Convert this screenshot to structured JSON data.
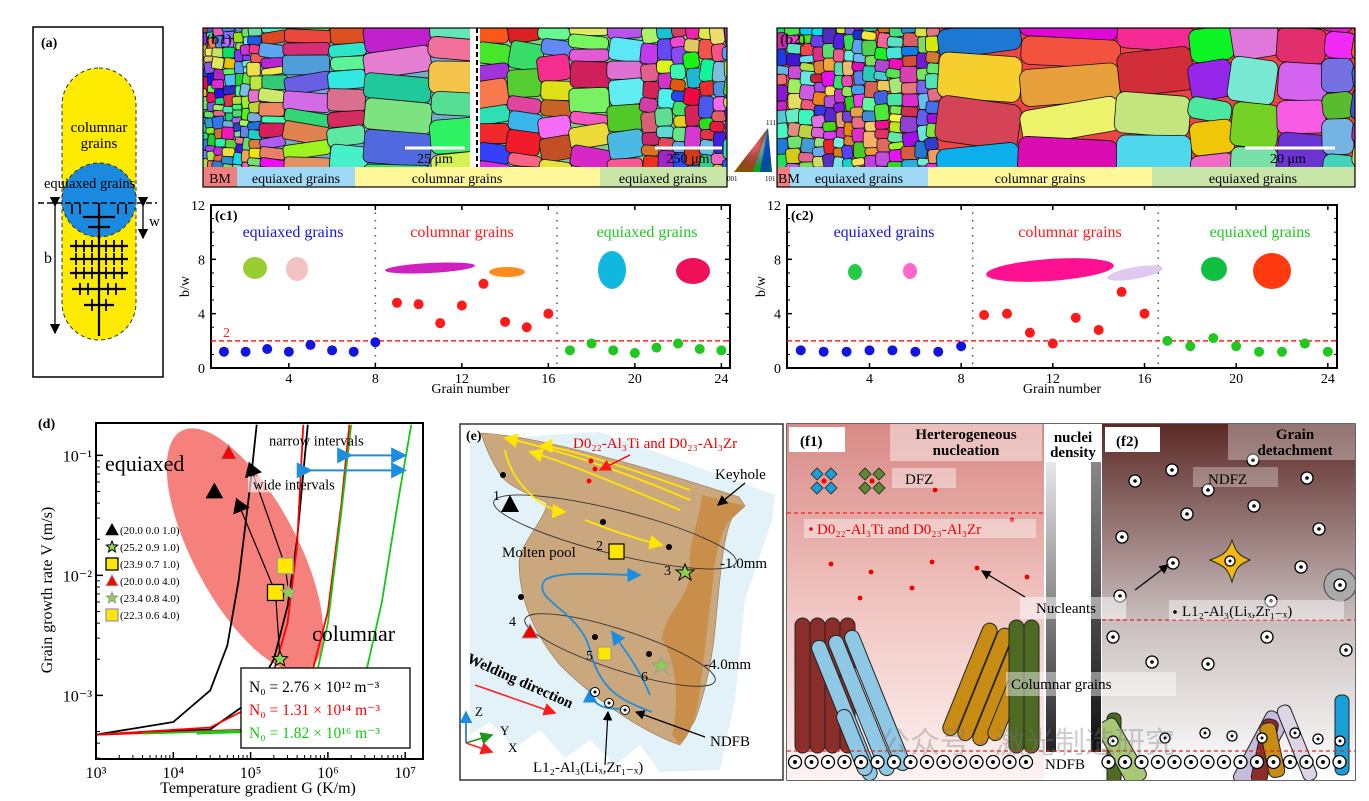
{
  "panel_a": {
    "label": "(a)",
    "columnar": "columnar",
    "grains": "grains",
    "equiaxed": "equiaxed grains",
    "b": "b",
    "w": "w"
  },
  "panel_b1": {
    "label": "(b1)",
    "scale_left": "25 μm",
    "scale_right": "250 μm",
    "strip": [
      "BM",
      "equiaxed grains",
      "columnar grains",
      "equiaxed grains"
    ]
  },
  "ipf": {
    "t111": "111",
    "t001": "001",
    "t101": "101"
  },
  "panel_b2": {
    "label": "(b2)",
    "scale": "20 μm",
    "strip": [
      "BM",
      "equiaxed grains",
      "columnar grains",
      "equiaxed grains"
    ]
  },
  "chart_data": [
    {
      "type": "scatter",
      "title": "(c1)",
      "xlabel": "Grain number",
      "ylabel": "b/w",
      "xlim": [
        0.4,
        24.4
      ],
      "ylim": [
        0,
        12
      ],
      "xticks": [
        "4",
        "8",
        "12",
        "16",
        "20",
        "24"
      ],
      "yticks": [
        "0",
        "4",
        "8",
        "12"
      ],
      "threshold": 2,
      "threshold_label": "2",
      "dividers": [
        8.0,
        16.4
      ],
      "groups": [
        {
          "name": "equiaxed grains",
          "color": "#1414e0",
          "x": [
            1,
            2,
            3,
            4,
            5,
            6,
            7,
            8
          ],
          "y": [
            1.2,
            1.2,
            1.4,
            1.2,
            1.7,
            1.3,
            1.2,
            1.9
          ]
        },
        {
          "name": "columnar grains",
          "color": "#ff1a1a",
          "x": [
            9,
            10,
            11,
            12,
            13,
            14,
            15,
            16
          ],
          "y": [
            4.8,
            4.7,
            3.3,
            4.6,
            6.2,
            3.4,
            3.0,
            4.0
          ]
        },
        {
          "name": "equiaxed grains",
          "color": "#1ec81e",
          "x": [
            17,
            18,
            19,
            20,
            21,
            22,
            23,
            24
          ],
          "y": [
            1.3,
            1.8,
            1.3,
            1.1,
            1.5,
            1.8,
            1.4,
            1.3
          ]
        }
      ]
    },
    {
      "type": "scatter",
      "title": "(c2)",
      "xlabel": "Grain number",
      "ylabel": "b/w",
      "xlim": [
        0.4,
        24.4
      ],
      "ylim": [
        0,
        12
      ],
      "xticks": [
        "4",
        "8",
        "12",
        "16",
        "20",
        "24"
      ],
      "yticks": [
        "0",
        "4",
        "8",
        "12"
      ],
      "threshold": 2,
      "dividers": [
        8.5,
        16.6
      ],
      "groups": [
        {
          "name": "equiaxed grains",
          "color": "#1414e0",
          "x": [
            1,
            2,
            3,
            4,
            5,
            6,
            7,
            8
          ],
          "y": [
            1.3,
            1.2,
            1.2,
            1.3,
            1.3,
            1.2,
            1.2,
            1.6
          ]
        },
        {
          "name": "columnar grains",
          "color": "#ff1a1a",
          "x": [
            9,
            10,
            11,
            12,
            13,
            14,
            15,
            16
          ],
          "y": [
            3.9,
            4.0,
            2.6,
            1.8,
            3.7,
            2.8,
            5.6,
            4.0
          ]
        },
        {
          "name": "equiaxed grains",
          "color": "#1ec81e",
          "x": [
            17,
            18,
            19,
            20,
            21,
            22,
            23,
            24
          ],
          "y": [
            2.0,
            1.6,
            2.2,
            1.6,
            1.2,
            1.2,
            1.8,
            1.2
          ]
        }
      ]
    },
    {
      "type": "line",
      "title": "(d)",
      "xlabel": "Temperature gradient G (K/m)",
      "ylabel": "Grain growth rate V (m/s)",
      "xscale": "log",
      "yscale": "log",
      "xlim": [
        1000,
        17000000
      ],
      "ylim": [
        0.000295,
        0.186
      ],
      "xticks": [
        "10³",
        "10⁴",
        "10⁵",
        "10⁶",
        "10⁷"
      ],
      "yticks": [
        "10⁻¹",
        "10⁻²",
        "10⁻³"
      ],
      "curves": [
        {
          "name": "N₀ = 2.76 × 10¹² m⁻³",
          "color": "#000000",
          "lines": [
            [
              [
                1000,
                0.00047
              ],
              [
                10000,
                0.0006
              ],
              [
                30000,
                0.0011
              ],
              [
                50000,
                0.0026
              ],
              [
                70000,
                0.009
              ],
              [
                100000,
                0.06
              ],
              [
                120000,
                0.18
              ]
            ],
            [
              [
                1000,
                0.00047
              ],
              [
                30000,
                0.00052
              ],
              [
                100000,
                0.0009
              ],
              [
                200000,
                0.002
              ],
              [
                300000,
                0.0055
              ],
              [
                400000,
                0.02
              ],
              [
                550000,
                0.18
              ]
            ]
          ]
        },
        {
          "name": "N₀ = 1.31 × 10¹⁴ m⁻³",
          "color": "#ff0000",
          "lines": [
            [
              [
                1000,
                0.00047
              ],
              [
                30000,
                0.00054
              ],
              [
                100000,
                0.0008
              ],
              [
                200000,
                0.0016
              ],
              [
                300000,
                0.004
              ],
              [
                400000,
                0.018
              ],
              [
                480000,
                0.18
              ]
            ],
            [
              [
                1000,
                0.00047
              ],
              [
                100000,
                0.00052
              ],
              [
                500000,
                0.0009
              ],
              [
                1000000,
                0.005
              ],
              [
                1500000,
                0.04
              ],
              [
                1900000,
                0.18
              ]
            ]
          ]
        },
        {
          "name": "N₀ = 1.82 × 10¹⁶ m⁻³",
          "color": "#14c814",
          "lines": [
            [
              [
                4000,
                0.00048
              ],
              [
                200000,
                0.00052
              ],
              [
                600000,
                0.0009
              ],
              [
                1000000,
                0.004
              ],
              [
                1500000,
                0.035
              ],
              [
                2000000,
                0.18
              ]
            ],
            [
              [
                20000,
                0.00048
              ],
              [
                1000000,
                0.00052
              ],
              [
                3000000,
                0.0014
              ],
              [
                5000000,
                0.006
              ],
              [
                8000000,
                0.04
              ],
              [
                12000000,
                0.18
              ]
            ]
          ]
        }
      ],
      "markers": [
        {
          "label": "(20.0 0.0 1.0)",
          "shape": "triangle",
          "fill": "#000000",
          "stroke": "#000000",
          "points": [
            [
              34000,
              0.05
            ]
          ]
        },
        {
          "label": "(25.2 0.9 1.0)",
          "shape": "star",
          "fill": "#8fd14f",
          "stroke": "#000000",
          "points": [
            [
              240000,
              0.002
            ]
          ]
        },
        {
          "label": "(23.9 0.7 1.0)",
          "shape": "square",
          "fill": "#ffe600",
          "stroke": "#000000",
          "points": [
            [
              210000,
              0.0072
            ]
          ]
        },
        {
          "label": "(20.0 0.0 4.0)",
          "shape": "triangle",
          "fill": "#ff0000",
          "stroke": "#999999",
          "points": [
            [
              52000,
              0.105
            ]
          ]
        },
        {
          "label": "(23.4 0.8 4.0)",
          "shape": "star",
          "fill": "#8fd14f",
          "stroke": "#999999",
          "points": [
            [
              310000,
              0.0072
            ]
          ]
        },
        {
          "label": "(22.3 0.6 4.0)",
          "shape": "square",
          "fill": "#ffe600",
          "stroke": "#999999",
          "points": [
            [
              280000,
              0.012
            ]
          ]
        }
      ],
      "paths": [
        [
          [
            240000,
            0.002
          ],
          [
            210000,
            0.0072
          ],
          [
            65000,
            0.044
          ]
        ],
        [
          [
            310000,
            0.0072
          ],
          [
            280000,
            0.012
          ],
          [
            95000,
            0.088
          ]
        ]
      ],
      "intervals": [
        {
          "label": "narrow intervals",
          "from": 2000000,
          "to": 10000000,
          "v": 0.1
        },
        {
          "label": "wide intervals",
          "from": 600000,
          "to": 10000000,
          "v": 0.075
        }
      ],
      "annotations": {
        "equiaxed": "equiaxed",
        "columnar": "columnar"
      }
    }
  ],
  "panel_e": {
    "label": "(e)",
    "phase_top": "D0₂₂-Al₃Ti and D0₂₃-Al₃Zr",
    "keyhole": "Keyhole",
    "molten_pool": "Molten pool",
    "points": [
      "1",
      "2",
      "3",
      "4",
      "5",
      "6"
    ],
    "depth1": "-1.0mm",
    "depth2": "-4.0mm",
    "welding_direction": "Welding direction",
    "ndfb": "NDFB",
    "l12": "L1₂-Al₃(Liₓ,Zr₁₋ₓ)",
    "axis_z": "Z",
    "axis_y": "Y",
    "axis_x": "X"
  },
  "panel_f1": {
    "label": "(f1)",
    "title_1": "Herterogeneous",
    "title_2": "nucleation",
    "dfz": "DFZ",
    "phase": "D0₂₂-Al₃Ti and D0₂₃-Al₃Zr",
    "nucleants": "Nucleants",
    "columnar": "Columnar grains",
    "ndfb": "NDFB"
  },
  "density": {
    "line1": "nuclei",
    "line2": "density"
  },
  "panel_f2": {
    "label": "(f2)",
    "title_1": "Grain",
    "title_2": "detachment",
    "ndfz": "NDFZ",
    "phase": "L1₂-Al₃(Liₓ,Zr₁₋ₓ)"
  },
  "watermark": "公众号 · 激光制造研究"
}
